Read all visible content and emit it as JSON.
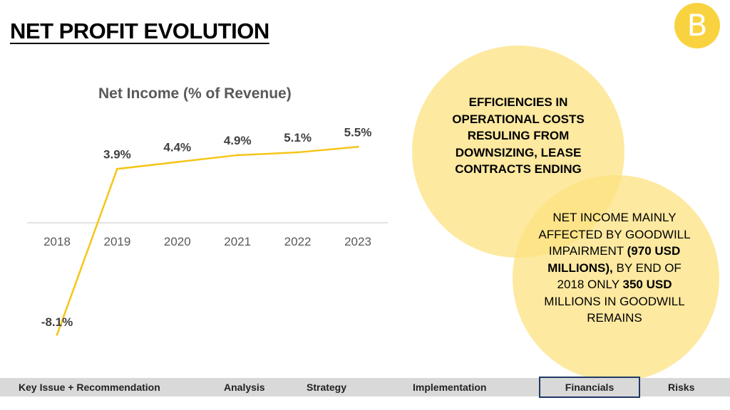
{
  "header": {
    "title": "NET PROFIT EVOLUTION",
    "logo_letter": "B"
  },
  "chart_data": {
    "type": "line",
    "title": "Net Income (% of Revenue)",
    "categories": [
      "2018",
      "2019",
      "2020",
      "2021",
      "2022",
      "2023"
    ],
    "values": [
      -8.1,
      3.9,
      4.4,
      4.9,
      5.1,
      5.5
    ],
    "data_labels": [
      "-8.1%",
      "3.9%",
      "4.4%",
      "4.9%",
      "5.1%",
      "5.5%"
    ],
    "color": "#f5c518",
    "ylim": [
      -10,
      8
    ],
    "grid": false,
    "legend": "none"
  },
  "callouts": {
    "top": {
      "text": "EFFICIENCIES IN OPERATIONAL COSTS RESULING FROM DOWNSIZING, LEASE CONTRACTS ENDING"
    },
    "bottom": {
      "part1": "NET INCOME MAINLY AFFECTED BY GOODWILL IMPAIRMENT ",
      "part2": "(970 USD MILLIONS),",
      "part3": " BY END OF 2018 ONLY ",
      "part4": "350 USD",
      "part5": " MILLIONS IN GOODWILL REMAINS"
    }
  },
  "nav": {
    "items": [
      {
        "label": "Key Issue + Recommendation",
        "active": false
      },
      {
        "label": "Analysis",
        "active": false
      },
      {
        "label": "Strategy",
        "active": false
      },
      {
        "label": "Implementation",
        "active": false
      },
      {
        "label": "Financials",
        "active": true
      },
      {
        "label": "Risks",
        "active": false
      }
    ]
  },
  "colors": {
    "accent": "#f5c518",
    "bubble": "#fce280",
    "nav_bg": "#d9d9d9",
    "active_border": "#1f3864"
  }
}
